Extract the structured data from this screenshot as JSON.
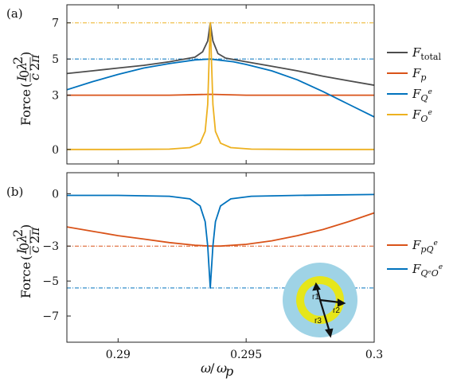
{
  "chart_data": [
    {
      "panel_label": "(a)",
      "type": "line",
      "ylabel": "Force (I₀/c · λ²/2π)",
      "xlim": [
        0.288,
        0.3
      ],
      "ylim": [
        -0.8,
        8.0
      ],
      "yticks": [
        0,
        3,
        5,
        7
      ],
      "ytick_labels": [
        "0",
        "3",
        "5",
        "7"
      ],
      "xticks": [
        0.29,
        0.295,
        0.3
      ],
      "reference_lines": [
        {
          "y": 7,
          "color": "#EDB120",
          "style": "dash-dot"
        },
        {
          "y": 5,
          "color": "#0072BD",
          "style": "dash-dot"
        }
      ],
      "series": [
        {
          "name": "F_total",
          "color": "#4D4D4D",
          "x": [
            0.288,
            0.289,
            0.29,
            0.291,
            0.292,
            0.293,
            0.2933,
            0.2935,
            0.2936,
            0.2937,
            0.2939,
            0.2942,
            0.295,
            0.296,
            0.297,
            0.298,
            0.299,
            0.3
          ],
          "y": [
            4.2,
            4.35,
            4.5,
            4.65,
            4.85,
            5.1,
            5.4,
            6.0,
            7.0,
            6.0,
            5.3,
            5.05,
            4.85,
            4.6,
            4.35,
            4.05,
            3.8,
            3.55
          ]
        },
        {
          "name": "F_p",
          "color": "#D95319",
          "x": [
            0.288,
            0.29,
            0.292,
            0.2936,
            0.295,
            0.297,
            0.3
          ],
          "y": [
            3.0,
            3.0,
            3.0,
            3.05,
            3.0,
            3.0,
            3.0
          ]
        },
        {
          "name": "F_Q^e",
          "color": "#0072BD",
          "x": [
            0.288,
            0.289,
            0.29,
            0.291,
            0.292,
            0.293,
            0.2936,
            0.2945,
            0.295,
            0.296,
            0.297,
            0.298,
            0.299,
            0.3
          ],
          "y": [
            3.3,
            3.75,
            4.15,
            4.5,
            4.75,
            4.95,
            5.0,
            4.85,
            4.7,
            4.35,
            3.85,
            3.2,
            2.5,
            1.8
          ]
        },
        {
          "name": "F_O^e",
          "color": "#EDB120",
          "x": [
            0.288,
            0.29,
            0.292,
            0.2928,
            0.2932,
            0.2934,
            0.2935,
            0.2936,
            0.2937,
            0.2938,
            0.294,
            0.2944,
            0.2952,
            0.297,
            0.3
          ],
          "y": [
            0.0,
            0.0,
            0.02,
            0.1,
            0.35,
            1.0,
            2.5,
            7.0,
            2.5,
            1.0,
            0.35,
            0.1,
            0.02,
            0.0,
            0.0
          ]
        }
      ]
    },
    {
      "panel_label": "(b)",
      "type": "line",
      "xlabel": "ω/ωp",
      "ylabel": "Force (I₀/c · λ²/2π)",
      "xlim": [
        0.288,
        0.3
      ],
      "ylim": [
        -8.5,
        1.2
      ],
      "yticks": [
        0,
        -3,
        -5,
        -7
      ],
      "ytick_labels": [
        "0",
        "−3",
        "−5",
        "−7"
      ],
      "xticks": [
        0.29,
        0.295,
        0.3
      ],
      "xtick_labels": [
        "0.29",
        "0.295",
        "0.3"
      ],
      "reference_lines": [
        {
          "y": -3,
          "color": "#D95319",
          "style": "dash-dot"
        },
        {
          "y": -5.4,
          "color": "#0072BD",
          "style": "dash-dot"
        }
      ],
      "series": [
        {
          "name": "F_pQ^e",
          "color": "#D95319",
          "x": [
            0.288,
            0.289,
            0.29,
            0.291,
            0.292,
            0.293,
            0.2936,
            0.294,
            0.295,
            0.296,
            0.297,
            0.298,
            0.299,
            0.3
          ],
          "y": [
            -1.9,
            -2.15,
            -2.4,
            -2.6,
            -2.8,
            -2.95,
            -3.0,
            -3.0,
            -2.9,
            -2.7,
            -2.4,
            -2.05,
            -1.6,
            -1.1
          ]
        },
        {
          "name": "F_Q^eO^e",
          "color": "#0072BD",
          "x": [
            0.288,
            0.29,
            0.292,
            0.2928,
            0.2932,
            0.2934,
            0.2935,
            0.2936,
            0.2937,
            0.2938,
            0.294,
            0.2944,
            0.2952,
            0.297,
            0.3
          ],
          "y": [
            -0.1,
            -0.1,
            -0.15,
            -0.3,
            -0.7,
            -1.6,
            -3.0,
            -5.4,
            -3.0,
            -1.6,
            -0.7,
            -0.3,
            -0.15,
            -0.1,
            -0.05
          ]
        }
      ]
    }
  ],
  "legend_a": [
    {
      "base": "F",
      "sub": "total",
      "sup": "",
      "color": "#4D4D4D"
    },
    {
      "base": "F",
      "sub": "p",
      "sup": "",
      "color": "#D95319"
    },
    {
      "base": "F",
      "sub": "Q",
      "sup": "e",
      "color": "#0072BD"
    },
    {
      "base": "F",
      "sub": "O",
      "sup": "e",
      "color": "#EDB120"
    }
  ],
  "legend_b": [
    {
      "base": "F",
      "sub": "pQ",
      "sup": "e",
      "color": "#D95319"
    },
    {
      "base": "F",
      "sub": "QᵉO",
      "sup": "e",
      "color": "#0072BD"
    }
  ],
  "inset": {
    "labels": [
      "r1",
      "r2",
      "r3"
    ],
    "outer_color": "#9FD3E6",
    "middle_color": "#E6E61A",
    "inner_color": "#9FD3E6"
  }
}
